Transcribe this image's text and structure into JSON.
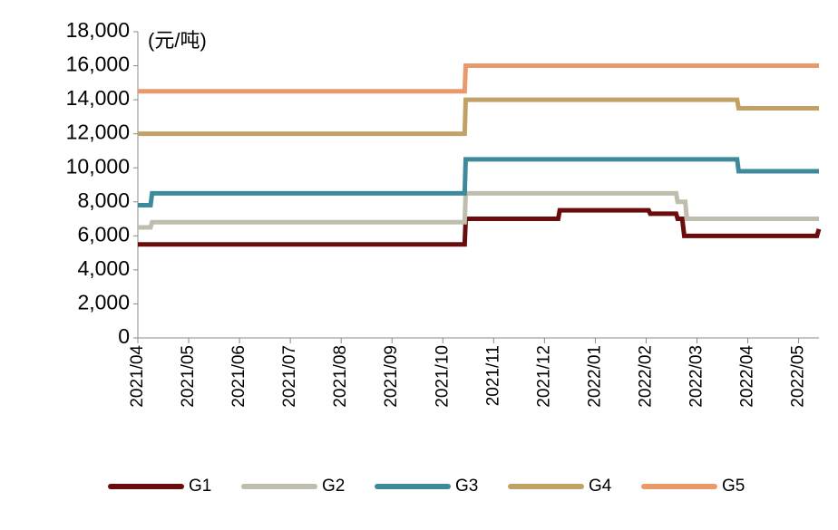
{
  "chart_data": {
    "type": "line",
    "unit_label": "(元/吨)",
    "xlim": [
      0,
      13.4
    ],
    "xticks": [
      {
        "value": 0,
        "label": "2021/04"
      },
      {
        "value": 1,
        "label": "2021/05"
      },
      {
        "value": 2,
        "label": "2021/06"
      },
      {
        "value": 3,
        "label": "2021/07"
      },
      {
        "value": 4,
        "label": "2021/08"
      },
      {
        "value": 5,
        "label": "2021/09"
      },
      {
        "value": 6,
        "label": "2021/10"
      },
      {
        "value": 7,
        "label": "2021/11"
      },
      {
        "value": 8,
        "label": "2021/12"
      },
      {
        "value": 9,
        "label": "2022/01"
      },
      {
        "value": 10,
        "label": "2022/02"
      },
      {
        "value": 11,
        "label": "2022/03"
      },
      {
        "value": 12,
        "label": "2022/04"
      },
      {
        "value": 13,
        "label": "2022/05"
      }
    ],
    "ylim": [
      0,
      18000
    ],
    "yticks": [
      0,
      {
        "value": 2000,
        "label": "2,000"
      },
      {
        "value": 4000,
        "label": "4,000"
      },
      {
        "value": 6000,
        "label": "6,000"
      },
      {
        "value": 8000,
        "label": "8,000"
      },
      {
        "value": 10000,
        "label": "10,000"
      },
      {
        "value": 12000,
        "label": "12,000"
      },
      {
        "value": 14000,
        "label": "14,000"
      },
      {
        "value": 16000,
        "label": "16,000"
      },
      {
        "value": 18000,
        "label": "18,000"
      }
    ],
    "series": [
      {
        "name": "G1",
        "color": "#6b0c0c",
        "x": [
          0,
          6.43,
          6.45,
          8.27,
          8.3,
          10.05,
          10.08,
          10.59,
          10.62,
          10.71,
          10.75,
          13.36,
          13.4
        ],
        "values": [
          5500,
          5500,
          7000,
          7000,
          7500,
          7500,
          7300,
          7300,
          7000,
          7000,
          6000,
          6000,
          6400
        ]
      },
      {
        "name": "G2",
        "color": "#bfbdad",
        "x": [
          0,
          0.25,
          0.28,
          6.43,
          6.45,
          10.59,
          10.62,
          10.77,
          10.8,
          13.4
        ],
        "values": [
          6500,
          6500,
          6800,
          6800,
          8500,
          8500,
          8000,
          8000,
          7000,
          7000
        ]
      },
      {
        "name": "G3",
        "color": "#3d8a9b",
        "x": [
          0,
          0.25,
          0.28,
          6.43,
          6.45,
          11.79,
          11.82,
          13.4
        ],
        "values": [
          7800,
          7800,
          8500,
          8500,
          10500,
          10500,
          9800,
          9800
        ]
      },
      {
        "name": "G4",
        "color": "#c1a264",
        "x": [
          0,
          6.43,
          6.45,
          11.79,
          11.82,
          13.4
        ],
        "values": [
          12000,
          12000,
          14000,
          14000,
          13500,
          13500
        ]
      },
      {
        "name": "G5",
        "color": "#e89a6a",
        "x": [
          0,
          6.43,
          6.45,
          13.4
        ],
        "values": [
          14500,
          14500,
          16000,
          16000
        ]
      }
    ]
  }
}
